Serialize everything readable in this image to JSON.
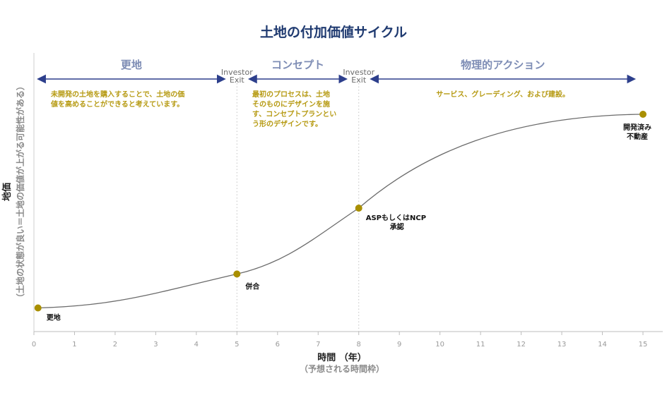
{
  "chart_data": {
    "type": "line",
    "title": "土地の付加価値サイクル",
    "xlabel": "時間 （年）",
    "xlabel_sub": "（予想される時間枠）",
    "ylabel": "地価",
    "ylabel_sub": "（土地の状態が良い＝土地の価値が上がる可能性がある）",
    "xlim": [
      0,
      15
    ],
    "x_ticks": [
      "0",
      "1",
      "2",
      "3",
      "4",
      "5",
      "6",
      "7",
      "8",
      "9",
      "10",
      "11",
      "12",
      "13",
      "14",
      "15"
    ],
    "grid": false,
    "colors": {
      "curve": "#6b6b6b",
      "points": "#a98f00",
      "phase_arrow": "#2d3f8c",
      "phase_text": "#7e8db5",
      "desc_text": "#b69a12",
      "title": "#1f3a70"
    },
    "phases": [
      {
        "name": "更地",
        "x_start": 0.1,
        "x_end": 4.7,
        "description": [
          "未開発の土地を購入することで、土地の価",
          "値を高めることができると考えています。"
        ]
      },
      {
        "name": "コンセプト",
        "x_start": 5.3,
        "x_end": 7.7,
        "description": [
          "最初のプロセスは、土地",
          "そのものにデザインを施",
          "す、コンセプトプランとい",
          "う形のデザインです。"
        ]
      },
      {
        "name": "物理的アクション",
        "x_start": 8.3,
        "x_end": 14.8,
        "description": [
          "サービス、グレーディング、および建設。"
        ]
      }
    ],
    "investor_exits": [
      {
        "x": 5,
        "line1": "Investor",
        "line2": "Exit"
      },
      {
        "x": 8,
        "line1": "Investor",
        "line2": "Exit"
      }
    ],
    "key_points": [
      {
        "x": 0.1,
        "y": 0.03,
        "label": [
          "更地"
        ]
      },
      {
        "x": 5,
        "y": 0.2,
        "label": [
          "併合"
        ]
      },
      {
        "x": 8,
        "y": 0.53,
        "label": [
          "ASPもしくはNCP",
          "承認"
        ]
      },
      {
        "x": 15,
        "y": 1.0,
        "label": [
          "開発済み",
          "不動産"
        ]
      }
    ]
  }
}
